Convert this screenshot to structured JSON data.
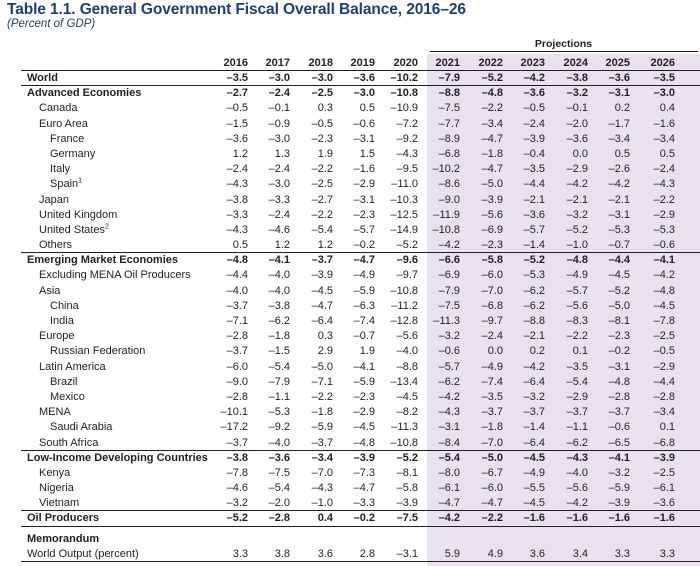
{
  "title": "Table 1.1. General Government Fiscal Overall Balance, 2016–26",
  "subtitle": "(Percent of GDP)",
  "projections_label": "Projections",
  "years": [
    "2016",
    "2017",
    "2018",
    "2019",
    "2020",
    "2021",
    "2022",
    "2023",
    "2024",
    "2025",
    "2026"
  ],
  "rows": [
    {
      "label": "World",
      "indent": 0,
      "bold": true,
      "values": [
        "–3.5",
        "–3.0",
        "–3.0",
        "–3.6",
        "–10.2",
        "–7.9",
        "–5.2",
        "–4.2",
        "–3.8",
        "–3.6",
        "–3.5"
      ],
      "sep": "thin"
    },
    {
      "label": "Advanced Economies",
      "indent": 0,
      "bold": true,
      "values": [
        "–2.7",
        "–2.4",
        "–2.5",
        "–3.0",
        "–10.8",
        "–8.8",
        "–4.8",
        "–3.6",
        "–3.2",
        "–3.1",
        "–3.0"
      ]
    },
    {
      "label": "Canada",
      "indent": 1,
      "values": [
        "–0.5",
        "–0.1",
        "0.3",
        "0.5",
        "–10.9",
        "–7.5",
        "–2.2",
        "–0.5",
        "–0.1",
        "0.2",
        "0.4"
      ]
    },
    {
      "label": "Euro Area",
      "indent": 1,
      "values": [
        "–1.5",
        "–0.9",
        "–0.5",
        "–0.6",
        "–7.2",
        "–7.7",
        "–3.4",
        "–2.4",
        "–2.0",
        "–1.7",
        "–1.6"
      ]
    },
    {
      "label": "France",
      "indent": 2,
      "values": [
        "–3.6",
        "–3.0",
        "–2.3",
        "–3.1",
        "–9.2",
        "–8.9",
        "–4.7",
        "–3.9",
        "–3.6",
        "–3.4",
        "–3.4"
      ]
    },
    {
      "label": "Germany",
      "indent": 2,
      "values": [
        "1.2",
        "1.3",
        "1.9",
        "1.5",
        "–4.3",
        "–6.8",
        "–1.8",
        "–0.4",
        "0.0",
        "0.5",
        "0.5"
      ]
    },
    {
      "label": "Italy",
      "indent": 2,
      "values": [
        "–2.4",
        "–2.4",
        "–2.2",
        "–1.6",
        "–9.5",
        "–10.2",
        "–4.7",
        "–3.5",
        "–2.9",
        "–2.6",
        "–2.4"
      ]
    },
    {
      "label": "Spain",
      "sup": "1",
      "indent": 2,
      "values": [
        "–4.3",
        "–3.0",
        "–2.5",
        "–2.9",
        "–11.0",
        "–8.6",
        "–5.0",
        "–4.4",
        "–4.2",
        "–4.2",
        "–4.3"
      ]
    },
    {
      "label": "Japan",
      "indent": 1,
      "values": [
        "–3.8",
        "–3.3",
        "–2.7",
        "–3.1",
        "–10.3",
        "–9.0",
        "–3.9",
        "–2.1",
        "–2.1",
        "–2.1",
        "–2.2"
      ]
    },
    {
      "label": "United Kingdom",
      "indent": 1,
      "values": [
        "–3.3",
        "–2.4",
        "–2.2",
        "–2.3",
        "–12.5",
        "–11.9",
        "–5.6",
        "–3.6",
        "–3.2",
        "–3.1",
        "–2.9"
      ]
    },
    {
      "label": "United States",
      "sup": "2",
      "indent": 1,
      "values": [
        "–4.3",
        "–4.6",
        "–5.4",
        "–5.7",
        "–14.9",
        "–10.8",
        "–6.9",
        "–5.7",
        "–5.2",
        "–5.3",
        "–5.3"
      ]
    },
    {
      "label": "Others",
      "indent": 1,
      "values": [
        "0.5",
        "1.2",
        "1.2",
        "–0.2",
        "–5.2",
        "–4.2",
        "–2.3",
        "–1.4",
        "–1.0",
        "–0.7",
        "–0.6"
      ],
      "sep": "thin"
    },
    {
      "label": "Emerging Market Economies",
      "indent": 0,
      "bold": true,
      "values": [
        "–4.8",
        "–4.1",
        "–3.7",
        "–4.7",
        "–9.6",
        "–6.6",
        "–5.8",
        "–5.2",
        "–4.8",
        "–4.4",
        "–4.1"
      ]
    },
    {
      "label": "Excluding MENA Oil Producers",
      "indent": 1,
      "values": [
        "–4.4",
        "–4.0",
        "–3.9",
        "–4.9",
        "–9.7",
        "–6.9",
        "–6.0",
        "–5.3",
        "–4.9",
        "–4.5",
        "–4.2"
      ]
    },
    {
      "label": "Asia",
      "indent": 1,
      "values": [
        "–4.0",
        "–4.0",
        "–4.5",
        "–5.9",
        "–10.8",
        "–7.9",
        "–7.0",
        "–6.2",
        "–5.7",
        "–5.2",
        "–4.8"
      ]
    },
    {
      "label": "China",
      "indent": 2,
      "values": [
        "–3.7",
        "–3.8",
        "–4.7",
        "–6.3",
        "–11.2",
        "–7.5",
        "–6.8",
        "–6.2",
        "–5.6",
        "–5.0",
        "–4.5"
      ]
    },
    {
      "label": "India",
      "indent": 2,
      "values": [
        "–7.1",
        "–6.2",
        "–6.4",
        "–7.4",
        "–12.8",
        "–11.3",
        "–9.7",
        "–8.8",
        "–8.3",
        "–8.1",
        "–7.8"
      ]
    },
    {
      "label": "Europe",
      "indent": 1,
      "values": [
        "–2.8",
        "–1.8",
        "0.3",
        "–0.7",
        "–5.6",
        "–3.2",
        "–2.4",
        "–2.1",
        "–2.2",
        "–2.3",
        "–2.5"
      ]
    },
    {
      "label": "Russian Federation",
      "indent": 2,
      "values": [
        "–3.7",
        "–1.5",
        "2.9",
        "1.9",
        "–4.0",
        "–0.6",
        "0.0",
        "0.2",
        "0.1",
        "–0.2",
        "–0.5"
      ]
    },
    {
      "label": "Latin America",
      "indent": 1,
      "values": [
        "–6.0",
        "–5.4",
        "–5.0",
        "–4.1",
        "–8.8",
        "–5.7",
        "–4.9",
        "–4.2",
        "–3.5",
        "–3.1",
        "–2.9"
      ]
    },
    {
      "label": "Brazil",
      "indent": 2,
      "values": [
        "–9.0",
        "–7.9",
        "–7.1",
        "–5.9",
        "–13.4",
        "–6.2",
        "–7.4",
        "–6.4",
        "–5.4",
        "–4.8",
        "–4.4"
      ]
    },
    {
      "label": "Mexico",
      "indent": 2,
      "values": [
        "–2.8",
        "–1.1",
        "–2.2",
        "–2.3",
        "–4.5",
        "–4.2",
        "–3.5",
        "–3.2",
        "–2.9",
        "–2.8",
        "–2.8"
      ]
    },
    {
      "label": "MENA",
      "indent": 1,
      "values": [
        "–10.1",
        "–5.3",
        "–1.8",
        "–2.9",
        "–8.2",
        "–4.3",
        "–3.7",
        "–3.7",
        "–3.7",
        "–3.7",
        "–3.4"
      ]
    },
    {
      "label": "Saudi Arabia",
      "indent": 2,
      "values": [
        "–17.2",
        "–9.2",
        "–5.9",
        "–4.5",
        "–11.3",
        "–3.1",
        "–1.8",
        "–1.4",
        "–1.1",
        "–0.6",
        "0.1"
      ]
    },
    {
      "label": "South Africa",
      "indent": 1,
      "values": [
        "–3.7",
        "–4.0",
        "–3.7",
        "–4.8",
        "–10.8",
        "–8.4",
        "–7.0",
        "–6.4",
        "–6.2",
        "–6.5",
        "–6.8"
      ],
      "sep": "thin"
    },
    {
      "label": "Low-Income Developing Countries",
      "indent": 0,
      "bold": true,
      "values": [
        "–3.8",
        "–3.6",
        "–3.4",
        "–3.9",
        "–5.2",
        "–5.4",
        "–5.0",
        "–4.5",
        "–4.3",
        "–4.1",
        "–3.9"
      ]
    },
    {
      "label": "Kenya",
      "indent": 1,
      "values": [
        "–7.8",
        "–7.5",
        "–7.0",
        "–7.3",
        "–8.1",
        "–8.0",
        "–6.7",
        "–4.9",
        "–4.0",
        "–3.2",
        "–2.5"
      ]
    },
    {
      "label": "Nigeria",
      "indent": 1,
      "values": [
        "–4.6",
        "–5.4",
        "–4.3",
        "–4.7",
        "–5.8",
        "–6.1",
        "–6.0",
        "–5.5",
        "–5.6",
        "–5.9",
        "–6.1"
      ]
    },
    {
      "label": "Vietnam",
      "indent": 1,
      "values": [
        "–3.2",
        "–2.0",
        "–1.0",
        "–3.3",
        "–3.9",
        "–4.7",
        "–4.7",
        "–4.5",
        "–4.2",
        "–3.9",
        "–3.6"
      ],
      "sep": "thin"
    },
    {
      "label": "Oil Producers",
      "indent": 0,
      "bold": true,
      "values": [
        "–5.2",
        "–2.8",
        "0.4",
        "–0.2",
        "–7.5",
        "–4.2",
        "–2.2",
        "–1.6",
        "–1.6",
        "–1.6",
        "–1.6"
      ],
      "sep": "thin"
    },
    {
      "label": "Memorandum",
      "indent": 0,
      "bold": true,
      "values": [
        "",
        "",
        "",
        "",
        "",
        "",
        "",
        "",
        "",
        "",
        ""
      ],
      "spacer": true
    },
    {
      "label": "World Output (percent)",
      "indent": 0,
      "values": [
        "3.3",
        "3.8",
        "3.6",
        "2.8",
        "–3.1",
        "5.9",
        "4.9",
        "3.6",
        "3.4",
        "3.3",
        "3.3"
      ],
      "sep": "thin"
    }
  ]
}
